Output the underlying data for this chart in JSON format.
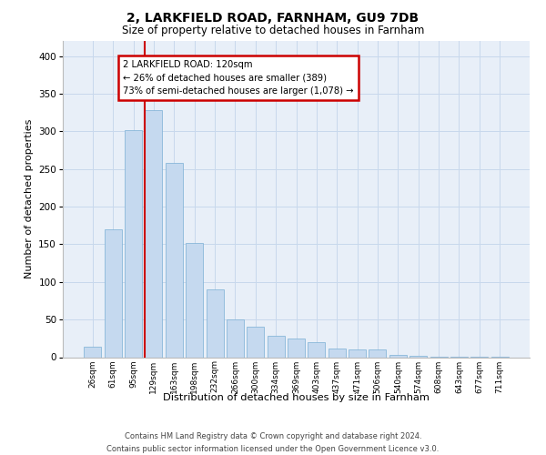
{
  "title1": "2, LARKFIELD ROAD, FARNHAM, GU9 7DB",
  "title2": "Size of property relative to detached houses in Farnham",
  "xlabel": "Distribution of detached houses by size in Farnham",
  "ylabel": "Number of detached properties",
  "categories": [
    "26sqm",
    "61sqm",
    "95sqm",
    "129sqm",
    "163sqm",
    "198sqm",
    "232sqm",
    "266sqm",
    "300sqm",
    "334sqm",
    "369sqm",
    "403sqm",
    "437sqm",
    "471sqm",
    "506sqm",
    "540sqm",
    "574sqm",
    "608sqm",
    "643sqm",
    "677sqm",
    "711sqm"
  ],
  "values": [
    14,
    170,
    302,
    328,
    258,
    152,
    90,
    50,
    40,
    28,
    25,
    20,
    12,
    10,
    10,
    3,
    2,
    1,
    1,
    1,
    1
  ],
  "bar_color": "#c5d9ef",
  "bar_edge_color": "#7aafd4",
  "vline_x": 2.57,
  "vline_color": "#cc0000",
  "annotation_line1": "2 LARKFIELD ROAD: 120sqm",
  "annotation_line2": "← 26% of detached houses are smaller (389)",
  "annotation_line3": "73% of semi-detached houses are larger (1,078) →",
  "grid_color": "#c8d8ec",
  "bg_color": "#e8eff8",
  "footer": "Contains HM Land Registry data © Crown copyright and database right 2024.\nContains public sector information licensed under the Open Government Licence v3.0.",
  "ylim_max": 420,
  "yticks": [
    0,
    50,
    100,
    150,
    200,
    250,
    300,
    350,
    400
  ]
}
